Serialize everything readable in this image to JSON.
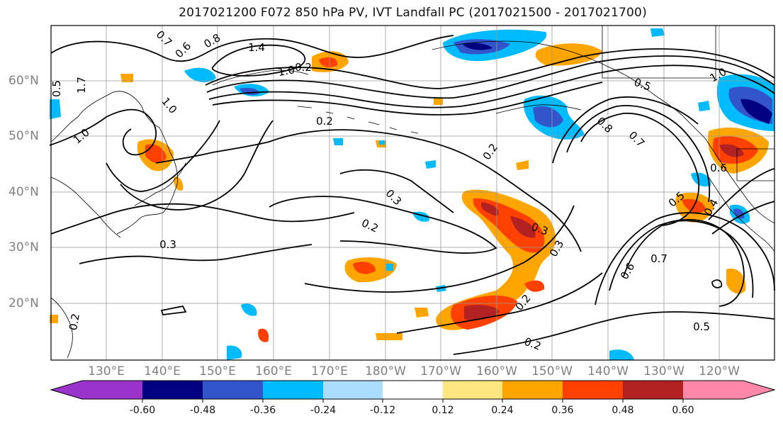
{
  "title": "2017021200 F072 850 hPa PV, IVT Landfall PC (2017021500 - 2017021700)",
  "lat_labels": [
    "60°N",
    "50°N",
    "40°N",
    "30°N",
    "20°N"
  ],
  "lon_labels": [
    "130°E",
    "140°E",
    "150°E",
    "160°E",
    "170°E",
    "180°W",
    "170°W",
    "160°W",
    "150°W",
    "140°W",
    "130°W",
    "120°W"
  ],
  "contour_labels": [
    "1.4",
    "0.6",
    "0.8",
    "0.7",
    "1.0",
    "1.0",
    "1.0",
    "0.2",
    "0.2",
    "0.3",
    "0.2",
    "0.3",
    "0.3",
    "0.3",
    "0.2",
    "0.2",
    "0.8",
    "0.7",
    "0.5",
    "1.0",
    "0.5",
    "0.4",
    "0.6",
    "0.7",
    "0.6",
    "0.5",
    "0.2",
    "0.5",
    "0.2",
    "1.7"
  ],
  "colorbar": {
    "ticks": [
      "-0.60",
      "-0.48",
      "-0.36",
      "-0.24",
      "-0.12",
      "0.12",
      "0.24",
      "0.36",
      "0.48",
      "0.60"
    ],
    "colors": [
      "#9933cc",
      "#000080",
      "#3355cc",
      "#00bbff",
      "#aaddff",
      "#ffffff",
      "#ffe680",
      "#ffa500",
      "#ff4000",
      "#b22222",
      "#ff88aa"
    ]
  }
}
